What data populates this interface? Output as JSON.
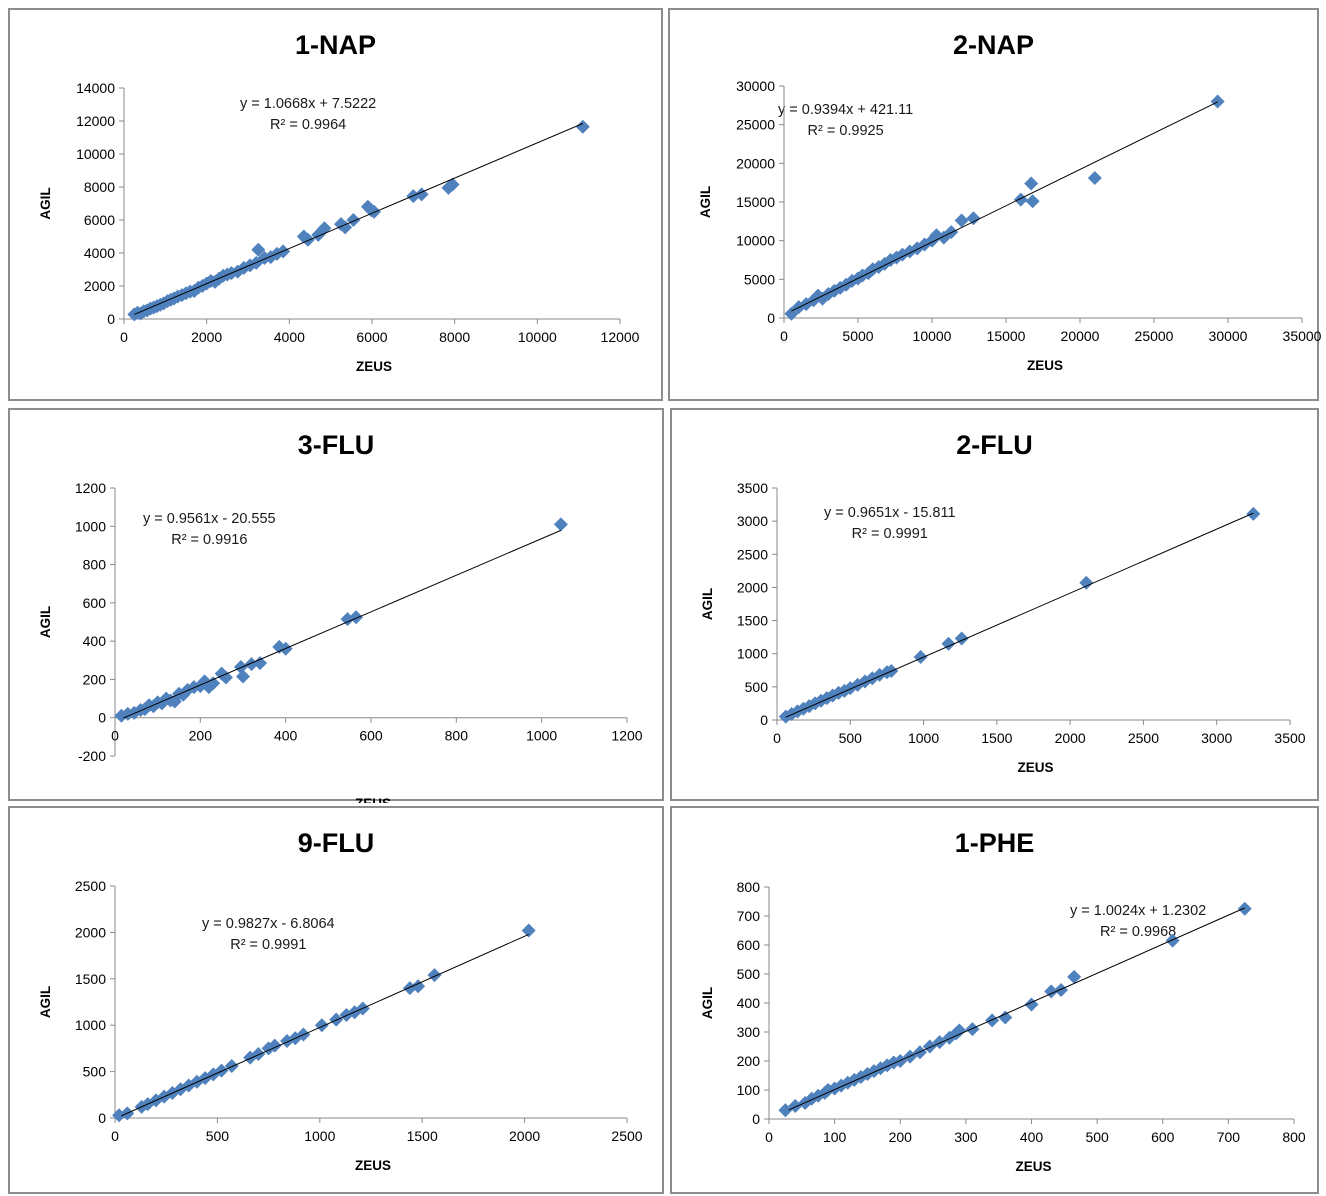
{
  "charts": [
    {
      "title": "1-NAP",
      "eq_line1": "y = 1.0668x + 7.5222",
      "eq_line2": "R² = 0.9964",
      "xlabel": "ZEUS",
      "ylabel": "AGIL"
    },
    {
      "title": "2-NAP",
      "eq_line1": "y = 0.9394x + 421.11",
      "eq_line2": "R² = 0.9925",
      "xlabel": "ZEUS",
      "ylabel": "AGIL"
    },
    {
      "title": "3-FLU",
      "eq_line1": "y = 0.9561x - 20.555",
      "eq_line2": "R² = 0.9916",
      "xlabel": "ZEUS",
      "ylabel": "AGIL"
    },
    {
      "title": "2-FLU",
      "eq_line1": "y = 0.9651x - 15.811",
      "eq_line2": "R² = 0.9991",
      "xlabel": "ZEUS",
      "ylabel": "AGIL"
    },
    {
      "title": "9-FLU",
      "eq_line1": "y = 0.9827x - 6.8064",
      "eq_line2": "R² = 0.9991",
      "xlabel": "ZEUS",
      "ylabel": "AGIL"
    },
    {
      "title": "1-PHE",
      "eq_line1": "y = 1.0024x + 1.2302",
      "eq_line2": "R² = 0.9968",
      "xlabel": "ZEUS",
      "ylabel": "AGIL"
    }
  ],
  "chart_data": [
    {
      "type": "scatter",
      "title": "1-NAP",
      "xlabel": "ZEUS",
      "ylabel": "AGIL",
      "xlim": [
        0,
        12000
      ],
      "ylim": [
        0,
        14000
      ],
      "xticks": [
        0,
        2000,
        4000,
        6000,
        8000,
        10000,
        12000
      ],
      "yticks": [
        0,
        2000,
        4000,
        6000,
        8000,
        10000,
        12000,
        14000
      ],
      "marker_color": "#4F81BD",
      "trendline": {
        "slope": 1.0668,
        "intercept": 7.5222,
        "r2": 0.9964,
        "x_range": [
          250,
          11100
        ]
      },
      "points": [
        [
          250,
          280
        ],
        [
          330,
          380
        ],
        [
          400,
          330
        ],
        [
          480,
          470
        ],
        [
          560,
          520
        ],
        [
          640,
          640
        ],
        [
          720,
          700
        ],
        [
          800,
          780
        ],
        [
          880,
          860
        ],
        [
          960,
          950
        ],
        [
          1050,
          1080
        ],
        [
          1130,
          1170
        ],
        [
          1210,
          1240
        ],
        [
          1300,
          1360
        ],
        [
          1400,
          1450
        ],
        [
          1500,
          1560
        ],
        [
          1600,
          1660
        ],
        [
          1700,
          1700
        ],
        [
          1800,
          1900
        ],
        [
          1900,
          2010
        ],
        [
          2000,
          2150
        ],
        [
          2100,
          2300
        ],
        [
          2200,
          2250
        ],
        [
          2300,
          2450
        ],
        [
          2400,
          2620
        ],
        [
          2500,
          2700
        ],
        [
          2600,
          2780
        ],
        [
          2750,
          2870
        ],
        [
          2900,
          3100
        ],
        [
          3050,
          3250
        ],
        [
          3200,
          3400
        ],
        [
          3250,
          4200
        ],
        [
          3400,
          3700
        ],
        [
          3550,
          3750
        ],
        [
          3700,
          3950
        ],
        [
          3850,
          4100
        ],
        [
          4350,
          5000
        ],
        [
          4450,
          4800
        ],
        [
          4700,
          5100
        ],
        [
          4850,
          5500
        ],
        [
          5250,
          5750
        ],
        [
          5350,
          5550
        ],
        [
          5550,
          6000
        ],
        [
          5900,
          6800
        ],
        [
          5980,
          6600
        ],
        [
          6050,
          6500
        ],
        [
          7000,
          7450
        ],
        [
          7200,
          7550
        ],
        [
          7850,
          7950
        ],
        [
          7950,
          8150
        ],
        [
          11100,
          11650
        ]
      ]
    },
    {
      "type": "scatter",
      "title": "2-NAP",
      "xlabel": "ZEUS",
      "ylabel": "AGIL",
      "xlim": [
        0,
        35000
      ],
      "ylim": [
        0,
        30000
      ],
      "xticks": [
        0,
        5000,
        10000,
        15000,
        20000,
        25000,
        30000,
        35000
      ],
      "yticks": [
        0,
        5000,
        10000,
        15000,
        20000,
        25000,
        30000
      ],
      "marker_color": "#4F81BD",
      "trendline": {
        "slope": 0.9394,
        "intercept": 421.11,
        "r2": 0.9925,
        "x_range": [
          500,
          29300
        ]
      },
      "points": [
        [
          500,
          550
        ],
        [
          1000,
          1400
        ],
        [
          1500,
          1800
        ],
        [
          2000,
          2300
        ],
        [
          2300,
          2900
        ],
        [
          2600,
          2500
        ],
        [
          3000,
          3100
        ],
        [
          3400,
          3500
        ],
        [
          3800,
          3900
        ],
        [
          4200,
          4300
        ],
        [
          4600,
          4800
        ],
        [
          5000,
          5100
        ],
        [
          5300,
          5500
        ],
        [
          5700,
          5800
        ],
        [
          6000,
          6300
        ],
        [
          6400,
          6600
        ],
        [
          6800,
          7000
        ],
        [
          7200,
          7500
        ],
        [
          7600,
          7800
        ],
        [
          8000,
          8200
        ],
        [
          8500,
          8600
        ],
        [
          9000,
          9000
        ],
        [
          9500,
          9500
        ],
        [
          10000,
          10000
        ],
        [
          10300,
          10700
        ],
        [
          10800,
          10400
        ],
        [
          11300,
          11100
        ],
        [
          12000,
          12600
        ],
        [
          12800,
          12900
        ],
        [
          16000,
          15300
        ],
        [
          16700,
          17400
        ],
        [
          16800,
          15100
        ],
        [
          21000,
          18100
        ],
        [
          29300,
          28000
        ]
      ]
    },
    {
      "type": "scatter",
      "title": "3-FLU",
      "xlabel": "ZEUS",
      "ylabel": "AGIL",
      "xlim": [
        0,
        1200
      ],
      "ylim": [
        -200,
        1200
      ],
      "xticks": [
        0,
        200,
        400,
        600,
        800,
        1000,
        1200
      ],
      "yticks": [
        -200,
        0,
        200,
        400,
        600,
        800,
        1000,
        1200
      ],
      "marker_color": "#4F81BD",
      "trendline": {
        "slope": 0.9561,
        "intercept": -20.555,
        "r2": 0.9916,
        "x_range": [
          20,
          1045
        ]
      },
      "points": [
        [
          15,
          10
        ],
        [
          30,
          20
        ],
        [
          45,
          25
        ],
        [
          60,
          40
        ],
        [
          70,
          45
        ],
        [
          80,
          65
        ],
        [
          90,
          60
        ],
        [
          100,
          80
        ],
        [
          110,
          75
        ],
        [
          120,
          100
        ],
        [
          130,
          90
        ],
        [
          140,
          85
        ],
        [
          150,
          125
        ],
        [
          160,
          120
        ],
        [
          170,
          145
        ],
        [
          185,
          160
        ],
        [
          200,
          165
        ],
        [
          210,
          190
        ],
        [
          220,
          160
        ],
        [
          230,
          180
        ],
        [
          250,
          230
        ],
        [
          260,
          210
        ],
        [
          295,
          265
        ],
        [
          300,
          215
        ],
        [
          320,
          280
        ],
        [
          340,
          285
        ],
        [
          385,
          370
        ],
        [
          400,
          360
        ],
        [
          545,
          515
        ],
        [
          565,
          525
        ],
        [
          1045,
          1010
        ]
      ]
    },
    {
      "type": "scatter",
      "title": "2-FLU",
      "xlabel": "ZEUS",
      "ylabel": "AGIL",
      "xlim": [
        0,
        3500
      ],
      "ylim": [
        0,
        3500
      ],
      "xticks": [
        0,
        500,
        1000,
        1500,
        2000,
        2500,
        3000,
        3500
      ],
      "yticks": [
        0,
        500,
        1000,
        1500,
        2000,
        2500,
        3000,
        3500
      ],
      "marker_color": "#4F81BD",
      "trendline": {
        "slope": 0.9651,
        "intercept": -15.811,
        "r2": 0.9991,
        "x_range": [
          60,
          3250
        ]
      },
      "points": [
        [
          60,
          50
        ],
        [
          100,
          90
        ],
        [
          140,
          130
        ],
        [
          180,
          170
        ],
        [
          220,
          210
        ],
        [
          260,
          250
        ],
        [
          300,
          290
        ],
        [
          340,
          330
        ],
        [
          380,
          370
        ],
        [
          420,
          410
        ],
        [
          460,
          440
        ],
        [
          500,
          480
        ],
        [
          550,
          530
        ],
        [
          600,
          580
        ],
        [
          650,
          630
        ],
        [
          700,
          680
        ],
        [
          750,
          720
        ],
        [
          780,
          740
        ],
        [
          980,
          950
        ],
        [
          1170,
          1150
        ],
        [
          1260,
          1230
        ],
        [
          2110,
          2070
        ],
        [
          3250,
          3110
        ]
      ]
    },
    {
      "type": "scatter",
      "title": "9-FLU",
      "xlabel": "ZEUS",
      "ylabel": "AGIL",
      "xlim": [
        0,
        2500
      ],
      "ylim": [
        0,
        2500
      ],
      "xticks": [
        0,
        500,
        1000,
        1500,
        2000,
        2500
      ],
      "yticks": [
        0,
        500,
        1000,
        1500,
        2000,
        2500
      ],
      "marker_color": "#4F81BD",
      "trendline": {
        "slope": 0.9827,
        "intercept": -6.8064,
        "r2": 0.9991,
        "x_range": [
          30,
          2020
        ]
      },
      "points": [
        [
          20,
          30
        ],
        [
          60,
          50
        ],
        [
          130,
          120
        ],
        [
          160,
          150
        ],
        [
          200,
          190
        ],
        [
          240,
          230
        ],
        [
          280,
          270
        ],
        [
          320,
          310
        ],
        [
          360,
          350
        ],
        [
          400,
          390
        ],
        [
          440,
          430
        ],
        [
          480,
          470
        ],
        [
          520,
          510
        ],
        [
          570,
          560
        ],
        [
          660,
          650
        ],
        [
          700,
          690
        ],
        [
          750,
          750
        ],
        [
          780,
          780
        ],
        [
          840,
          830
        ],
        [
          880,
          860
        ],
        [
          920,
          900
        ],
        [
          1010,
          1000
        ],
        [
          1080,
          1060
        ],
        [
          1130,
          1110
        ],
        [
          1170,
          1140
        ],
        [
          1210,
          1180
        ],
        [
          1440,
          1400
        ],
        [
          1480,
          1420
        ],
        [
          1560,
          1540
        ],
        [
          2020,
          2020
        ]
      ]
    },
    {
      "type": "scatter",
      "title": "1-PHE",
      "xlabel": "ZEUS",
      "ylabel": "AGIL",
      "xlim": [
        0,
        800
      ],
      "ylim": [
        0,
        800
      ],
      "xticks": [
        0,
        100,
        200,
        300,
        400,
        500,
        600,
        700,
        800
      ],
      "yticks": [
        0,
        100,
        200,
        300,
        400,
        500,
        600,
        700,
        800
      ],
      "marker_color": "#4F81BD",
      "trendline": {
        "slope": 1.0024,
        "intercept": 1.2302,
        "r2": 0.9968,
        "x_range": [
          30,
          725
        ]
      },
      "points": [
        [
          25,
          30
        ],
        [
          40,
          45
        ],
        [
          55,
          55
        ],
        [
          65,
          70
        ],
        [
          75,
          80
        ],
        [
          85,
          90
        ],
        [
          90,
          100
        ],
        [
          100,
          105
        ],
        [
          110,
          115
        ],
        [
          120,
          125
        ],
        [
          130,
          135
        ],
        [
          140,
          145
        ],
        [
          150,
          155
        ],
        [
          160,
          165
        ],
        [
          170,
          175
        ],
        [
          180,
          185
        ],
        [
          190,
          195
        ],
        [
          200,
          200
        ],
        [
          215,
          215
        ],
        [
          230,
          230
        ],
        [
          245,
          250
        ],
        [
          260,
          265
        ],
        [
          275,
          280
        ],
        [
          285,
          295
        ],
        [
          290,
          305
        ],
        [
          310,
          310
        ],
        [
          340,
          340
        ],
        [
          360,
          350
        ],
        [
          400,
          395
        ],
        [
          430,
          440
        ],
        [
          445,
          445
        ],
        [
          465,
          490
        ],
        [
          615,
          615
        ],
        [
          725,
          725
        ]
      ]
    }
  ]
}
